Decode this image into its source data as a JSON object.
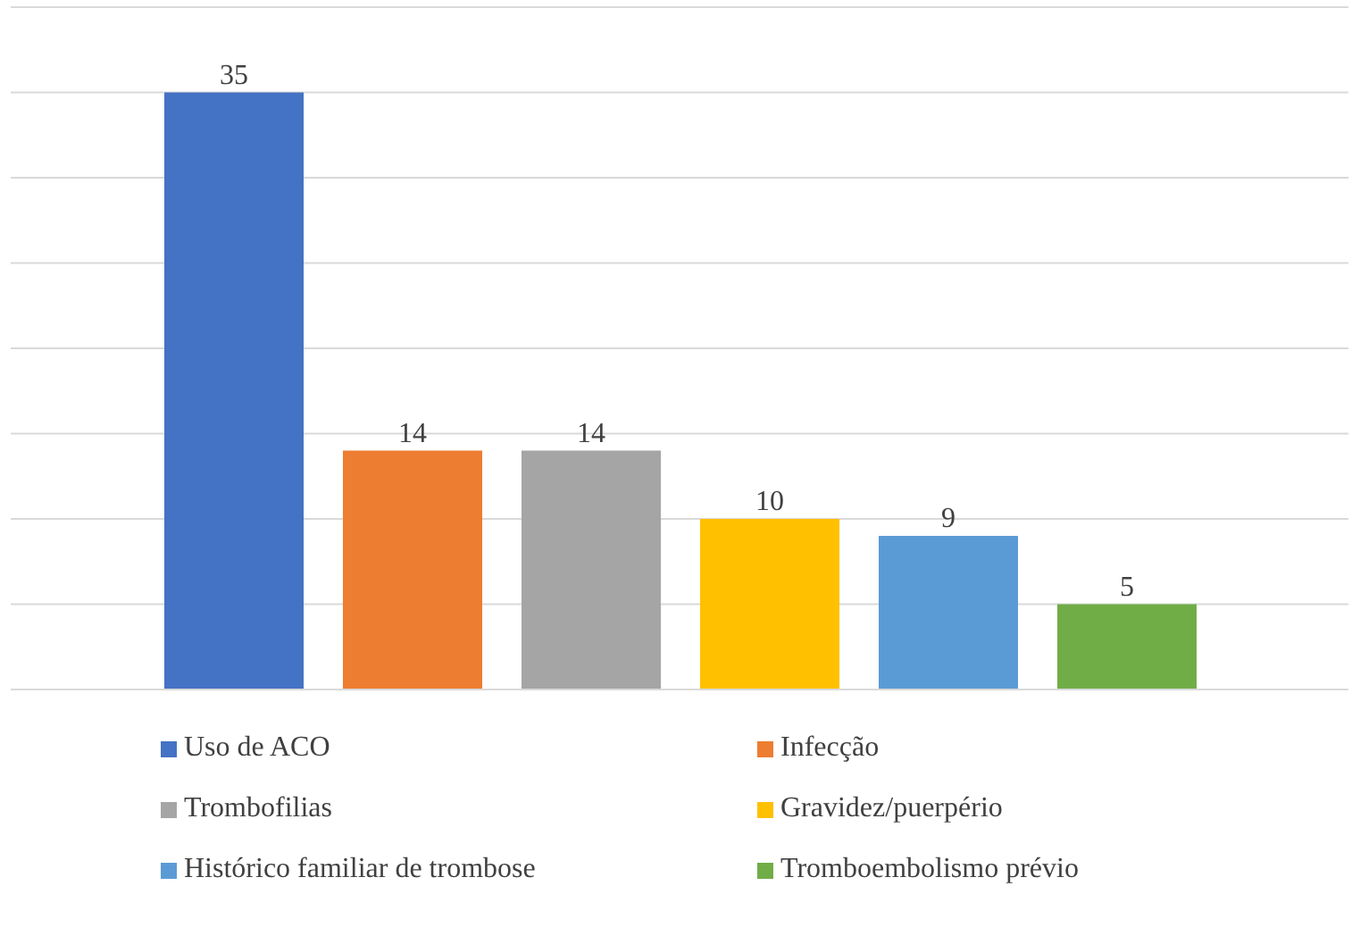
{
  "chart_data": {
    "type": "bar",
    "categories": [
      null
    ],
    "series": [
      {
        "name": "Uso de ACO",
        "color": "#4472c4",
        "values": [
          35
        ]
      },
      {
        "name": "Infecção",
        "color": "#ed7d31",
        "values": [
          14
        ]
      },
      {
        "name": "Trombofilias",
        "color": "#a5a5a5",
        "values": [
          14
        ]
      },
      {
        "name": "Gravidez/puerpério",
        "color": "#ffc000",
        "values": [
          10
        ]
      },
      {
        "name": "Histórico familiar de trombose",
        "color": "#5b9bd5",
        "values": [
          9
        ]
      },
      {
        "name": "Tromboembolismo prévio",
        "color": "#70ad47",
        "values": [
          5
        ]
      }
    ],
    "ylim": [
      0,
      40
    ],
    "yticks": [
      {
        "value": 0,
        "label": null
      },
      {
        "value": 5,
        "label": null
      },
      {
        "value": 10,
        "label": null
      },
      {
        "value": 15,
        "label": null
      },
      {
        "value": 20,
        "label": null
      },
      {
        "value": 25,
        "label": null
      },
      {
        "value": 30,
        "label": null
      },
      {
        "value": 35,
        "label": null
      },
      {
        "value": 40,
        "label": null
      }
    ],
    "grid": "y",
    "data_labels": true,
    "legend": "bottom"
  }
}
